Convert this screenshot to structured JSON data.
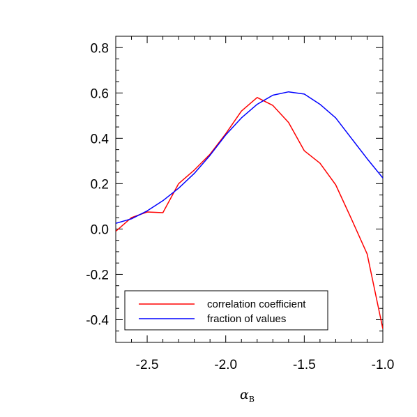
{
  "chart_data": {
    "type": "line",
    "title": "",
    "xlabel": "α",
    "xlabel_subscript": "B",
    "ylabel": "",
    "xlim": [
      -2.7,
      -1.0
    ],
    "ylim": [
      -0.5,
      0.85
    ],
    "x_ticks": [
      -2.5,
      -2.0,
      -1.5,
      -1.0
    ],
    "x_tick_labels": [
      "-2.5",
      "-2.0",
      "-1.5",
      "-1.0"
    ],
    "y_ticks": [
      -0.4,
      -0.2,
      0.0,
      0.2,
      0.4,
      0.6,
      0.8
    ],
    "y_tick_labels": [
      "-0.4",
      "-0.2",
      "0.0",
      "0.2",
      "0.4",
      "0.6",
      "0.8"
    ],
    "x_minor_step": 0.1,
    "y_minor_step": 0.05,
    "grid": false,
    "legend_position": "bottom-left",
    "series": [
      {
        "name": "correlation coefficient",
        "color": "#ff0000",
        "x": [
          -2.7,
          -2.6,
          -2.5,
          -2.4,
          -2.3,
          -2.2,
          -2.1,
          -2.0,
          -1.9,
          -1.8,
          -1.7,
          -1.6,
          -1.5,
          -1.4,
          -1.3,
          -1.2,
          -1.1,
          -1.0
        ],
        "y": [
          -0.01,
          0.05,
          0.075,
          0.072,
          0.2,
          0.26,
          0.33,
          0.42,
          0.52,
          0.58,
          0.545,
          0.47,
          0.345,
          0.29,
          0.195,
          0.045,
          -0.11,
          -0.44
        ]
      },
      {
        "name": "fraction of values",
        "color": "#0000ff",
        "x": [
          -2.7,
          -2.6,
          -2.5,
          -2.4,
          -2.3,
          -2.2,
          -2.1,
          -2.0,
          -1.9,
          -1.8,
          -1.7,
          -1.6,
          -1.5,
          -1.4,
          -1.3,
          -1.2,
          -1.1,
          -1.0
        ],
        "y": [
          0.025,
          0.045,
          0.08,
          0.125,
          0.18,
          0.245,
          0.325,
          0.415,
          0.49,
          0.55,
          0.59,
          0.605,
          0.595,
          0.55,
          0.49,
          0.4,
          0.31,
          0.225
        ]
      }
    ]
  }
}
